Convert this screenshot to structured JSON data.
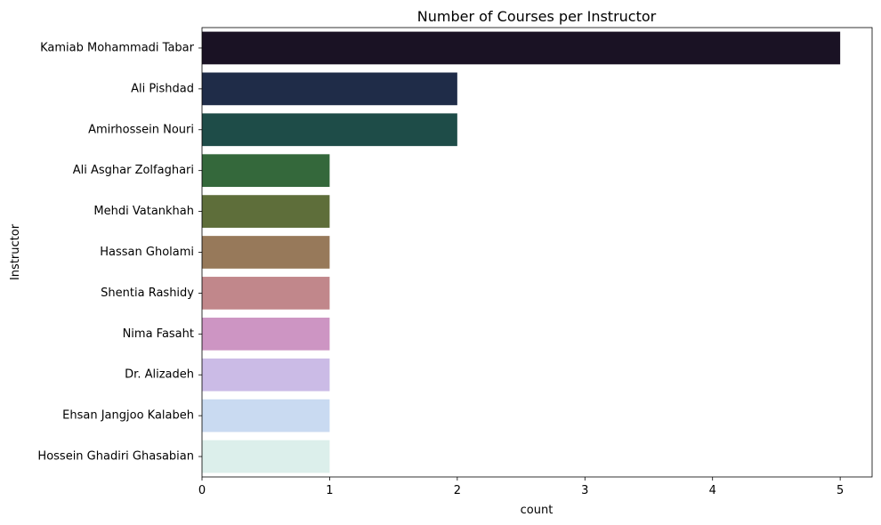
{
  "chart_data": {
    "type": "bar",
    "orientation": "horizontal",
    "title": "Number of Courses per Instructor",
    "xlabel": "count",
    "ylabel": "Instructor",
    "xlim": [
      0,
      5.25
    ],
    "xticks": [
      0,
      1,
      2,
      3,
      4,
      5
    ],
    "grid": false,
    "categories": [
      "Kamiab Mohammadi Tabar",
      "Ali Pishdad",
      "Amirhossein Nouri",
      "Ali Asghar Zolfaghari",
      "Mehdi Vatankhah",
      "Hassan Gholami",
      "Shentia Rashidy",
      "Nima Fasaht",
      "Dr. Alizadeh",
      "Ehsan Jangjoo Kalabeh",
      "Hossein Ghadiri Ghasabian"
    ],
    "values": [
      5,
      2,
      2,
      1,
      1,
      1,
      1,
      1,
      1,
      1,
      1
    ],
    "colors": [
      "#1a1224",
      "#1f2c48",
      "#1e4c48",
      "#34683b",
      "#5e6e3a",
      "#97795a",
      "#c1878b",
      "#cd95c3",
      "#cbbbe6",
      "#c9daf1",
      "#dcefeb"
    ]
  }
}
